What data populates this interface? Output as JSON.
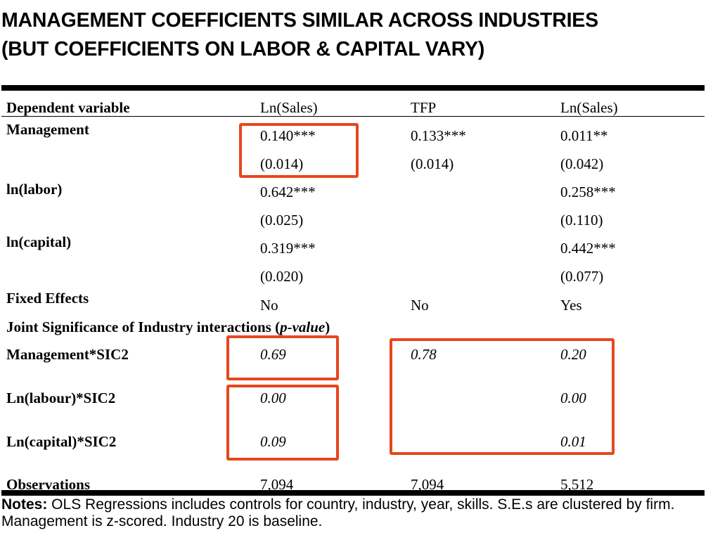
{
  "slide": {
    "title_line1": "MANAGEMENT COEFFICIENTS SIMILAR ACROSS INDUSTRIES",
    "title_line2": "(BUT COEFFICIENTS ON LABOR & CAPITAL VARY)",
    "highlight_color": "#e8461e"
  },
  "table": {
    "header": {
      "label": "Dependent variable",
      "col1": "Ln(Sales)",
      "col2": "TFP",
      "col3": "Ln(Sales)"
    },
    "management": {
      "label": "Management",
      "col1_coef": "0.140***",
      "col1_se": "(0.014)",
      "col2_coef": "0.133***",
      "col2_se": "(0.014)",
      "col3_coef": "0.011**",
      "col3_se": "(0.042)"
    },
    "labor": {
      "label": "ln(labor)",
      "col1_coef": "0.642***",
      "col1_se": "(0.025)",
      "col3_coef": "0.258***",
      "col3_se": "(0.110)"
    },
    "capital": {
      "label": "ln(capital)",
      "col1_coef": "0.319***",
      "col1_se": "(0.020)",
      "col3_coef": "0.442***",
      "col3_se": "(0.077)"
    },
    "fixed_effects": {
      "label": "Fixed Effects",
      "col1": "No",
      "col2": "No",
      "col3": "Yes"
    },
    "joint": {
      "label_prefix": "Joint Significance of Industry interactions (",
      "label_italic": "p-value",
      "label_suffix": ")"
    },
    "mgmt_sic2": {
      "label": "Management*SIC2",
      "col1": "0.69",
      "col2": "0.78",
      "col3": "0.20"
    },
    "labour_sic2": {
      "label": "Ln(labour)*SIC2",
      "col1": "0.00",
      "col3": "0.00"
    },
    "capital_sic2": {
      "label": "Ln(capital)*SIC2",
      "col1": "0.09",
      "col3": "0.01"
    },
    "observations": {
      "label": "Observations",
      "col1": "7,094",
      "col2": "7,094",
      "col3": "5,512"
    }
  },
  "notes": {
    "label": "Notes:",
    "text": " OLS Regressions includes controls for country, industry, year, skills. S.E.s are clustered by firm. Management is z-scored. Industry 20 is baseline."
  }
}
